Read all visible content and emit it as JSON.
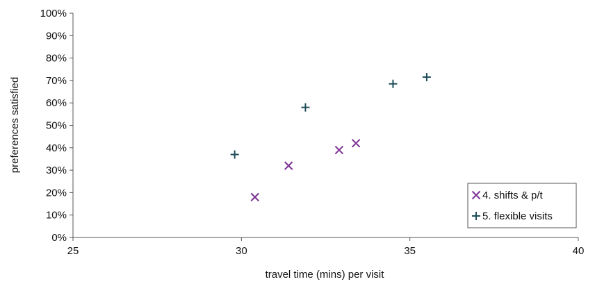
{
  "chart_data": {
    "type": "scatter",
    "title": "",
    "xlabel": "travel time (mins) per visit",
    "ylabel": "preferences satisfied",
    "xlim": [
      25,
      40
    ],
    "ylim": [
      0,
      100
    ],
    "x_ticks": [
      25,
      30,
      35,
      40
    ],
    "y_ticks": [
      "0%",
      "10%",
      "20%",
      "30%",
      "40%",
      "50%",
      "60%",
      "70%",
      "80%",
      "90%",
      "100%"
    ],
    "grid": false,
    "legend_position": "bottom-right",
    "series": [
      {
        "name": "4. shifts & p/t",
        "marker": "x",
        "color": "#7b3294",
        "points": [
          {
            "x": 30.4,
            "y": 18
          },
          {
            "x": 31.4,
            "y": 32
          },
          {
            "x": 32.9,
            "y": 39
          },
          {
            "x": 33.4,
            "y": 42
          }
        ]
      },
      {
        "name": "5. flexible visits",
        "marker": "+",
        "color": "#1f4e5a",
        "points": [
          {
            "x": 29.8,
            "y": 37
          },
          {
            "x": 31.9,
            "y": 58
          },
          {
            "x": 34.5,
            "y": 68.5
          },
          {
            "x": 35.5,
            "y": 71.5
          }
        ]
      }
    ]
  }
}
